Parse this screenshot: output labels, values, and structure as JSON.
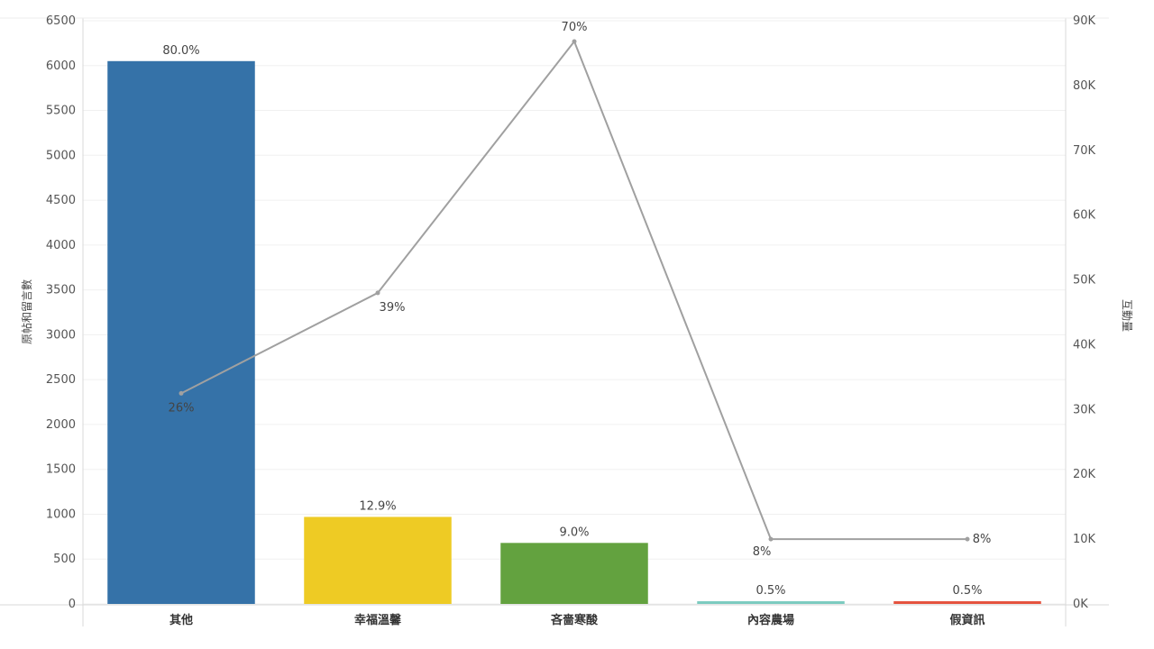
{
  "chart_data": {
    "type": "bar",
    "categories": [
      "其他",
      "幸福溫馨",
      "吝嗇寒酸",
      "內容農場",
      "假資訊"
    ],
    "series": [
      {
        "axis": "left",
        "values": [
          6050,
          970,
          680,
          30,
          30
        ],
        "value_labels": [
          "80.0%",
          "12.9%",
          "9.0%",
          "0.5%",
          "0.5%"
        ],
        "colors": [
          "#3572a8",
          "#eecb24",
          "#63a23f",
          "#7ccbc0",
          "#e5533f"
        ]
      },
      {
        "type": "line",
        "axis": "right",
        "values": [
          32500,
          48000,
          86800,
          10000,
          10000
        ],
        "value_labels": [
          "26%",
          "39%",
          "70%",
          "8%",
          "8%"
        ],
        "color": "#a0a0a0"
      }
    ],
    "ylabel": "原帖和留言數",
    "y2label": "互動量",
    "ylim": [
      0,
      6500
    ],
    "y2lim": [
      0,
      90000
    ],
    "yticks": [
      "0",
      "500",
      "1000",
      "1500",
      "2000",
      "2500",
      "3000",
      "3500",
      "4000",
      "4500",
      "5000",
      "5500",
      "6000",
      "6500"
    ],
    "y2ticks": [
      "0K",
      "10K",
      "20K",
      "30K",
      "40K",
      "50K",
      "60K",
      "70K",
      "80K",
      "90K"
    ],
    "grid": true,
    "legend": "none"
  }
}
